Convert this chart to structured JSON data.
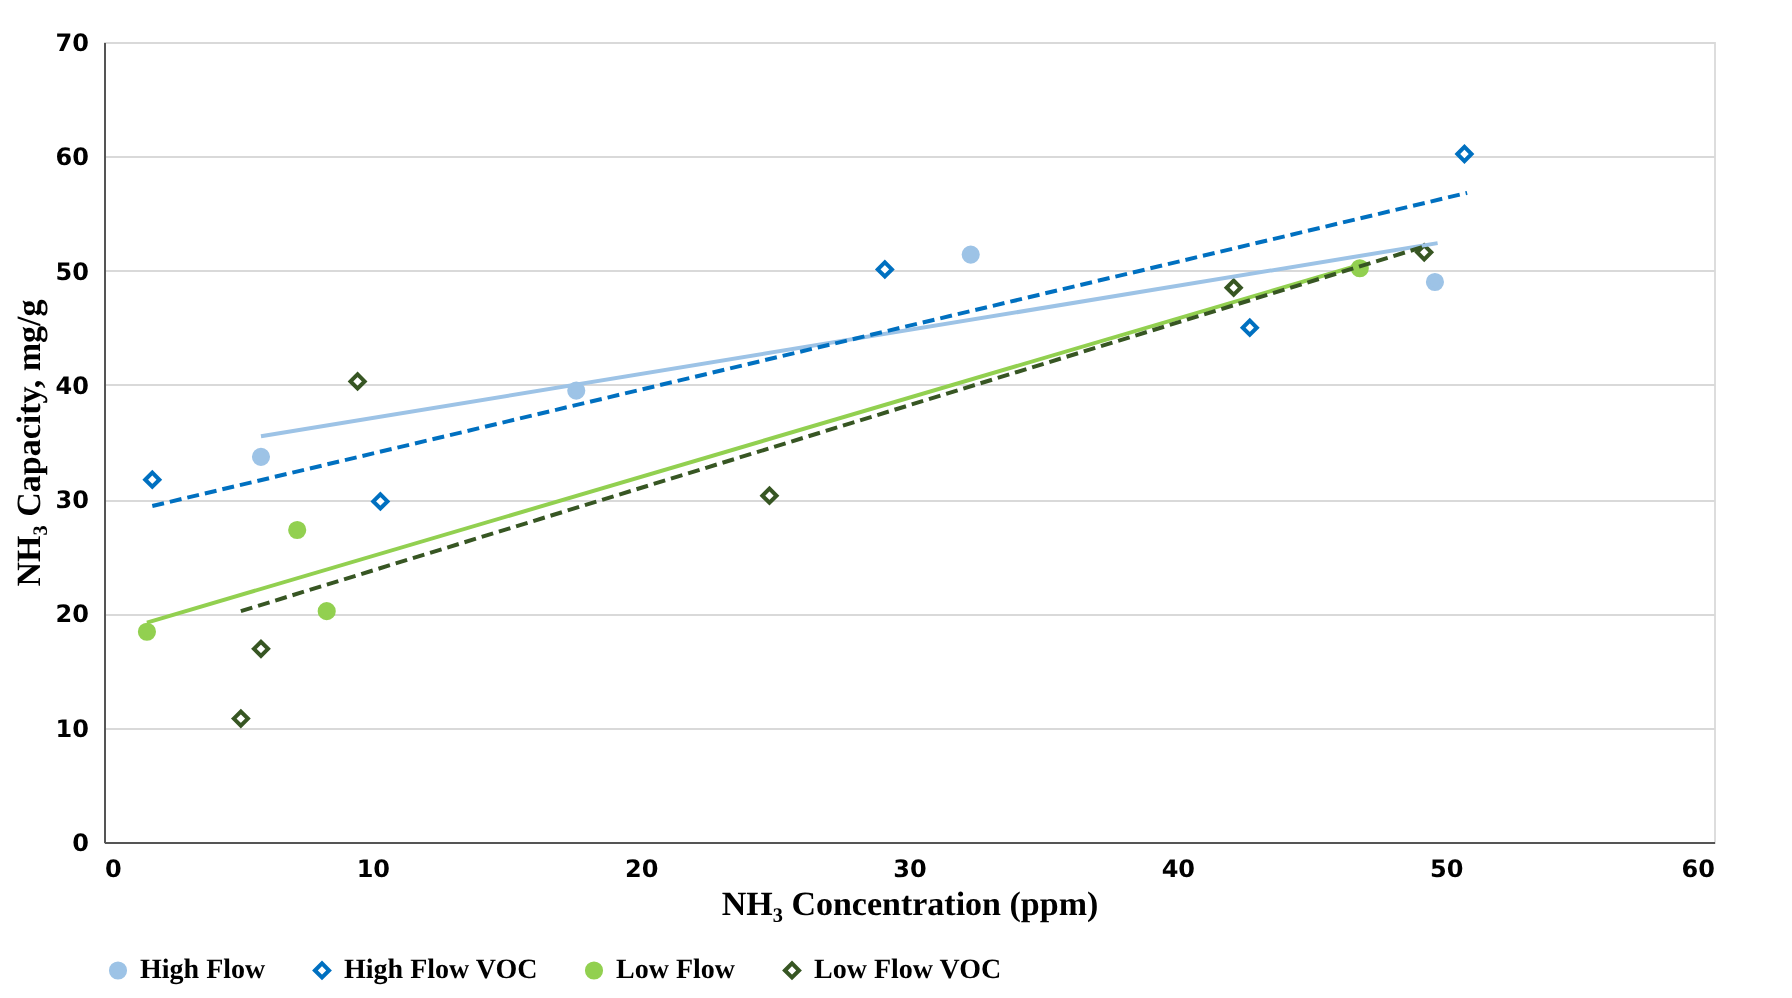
{
  "chart_data": {
    "type": "scatter",
    "xlabel": "NH₃ Concentration (ppm)",
    "ylabel": "NH₃ Capacity, mg/g",
    "xlim": [
      0,
      60
    ],
    "xticks": [
      0,
      10,
      20,
      30,
      40,
      50,
      60
    ],
    "ylim": [
      0,
      70
    ],
    "yticks": [
      0,
      10,
      20,
      30,
      40,
      50,
      60,
      70
    ],
    "grid": "y",
    "legend": "bottom",
    "series": [
      {
        "name": "High Flow",
        "marker": "circle",
        "color": "#9dc3e6",
        "x": [
          5.85,
          17.6,
          32.3,
          49.6
        ],
        "values": [
          33.7,
          39.5,
          51.4,
          49.0
        ]
      },
      {
        "name": "High Flow VOC",
        "marker": "diamond",
        "color": "#0070c0",
        "x": [
          1.8,
          10.3,
          29.1,
          42.7,
          50.7
        ],
        "values": [
          31.7,
          29.8,
          50.1,
          45.0,
          60.2
        ]
      },
      {
        "name": "Low Flow",
        "marker": "circle",
        "color": "#92d050",
        "x": [
          1.6,
          7.2,
          8.3,
          46.8
        ],
        "values": [
          18.4,
          27.3,
          20.2,
          50.2
        ]
      },
      {
        "name": "Low Flow VOC",
        "marker": "diamond",
        "color": "#375623",
        "x": [
          5.1,
          5.85,
          9.45,
          24.8,
          42.1,
          49.2
        ],
        "values": [
          10.8,
          16.9,
          40.3,
          30.3,
          48.5,
          51.6
        ]
      },
      {
        "type": "line",
        "line_style": "solid",
        "color": "#9dc3e6",
        "x": [
          5.85,
          49.7
        ],
        "values": [
          35.5,
          52.4
        ]
      },
      {
        "type": "line",
        "line_style": "dashed",
        "color": "#0070c0",
        "x": [
          1.8,
          50.8
        ],
        "values": [
          29.4,
          56.8
        ]
      },
      {
        "type": "line",
        "line_style": "solid",
        "color": "#92d050",
        "x": [
          1.6,
          46.8
        ],
        "values": [
          19.2,
          50.5
        ]
      },
      {
        "type": "line",
        "line_style": "dashed",
        "color": "#375623",
        "x": [
          5.1,
          49.2
        ],
        "values": [
          20.2,
          52.1
        ]
      }
    ]
  }
}
